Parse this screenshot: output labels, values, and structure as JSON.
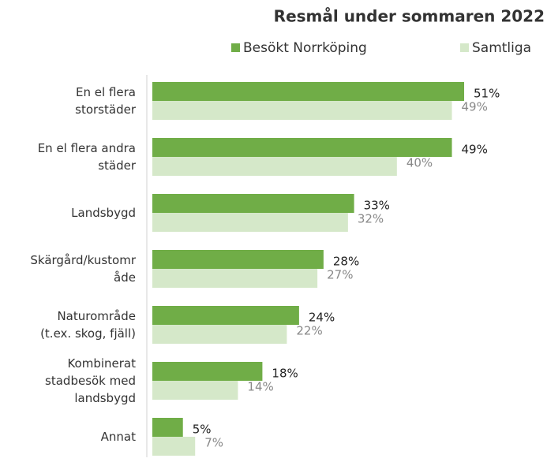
{
  "chart_data": {
    "type": "barh",
    "title": "Resmål under sommaren 2022",
    "categories": [
      "En el flera\nstorstäder",
      "En el flera andra\nstäder",
      "Landsbygd",
      "Skärgård/kustomr\nåde",
      "Naturområde\n(t.ex. skog, fjäll)",
      "Kombinerat\nstadbesök med\nlandsbygd",
      "Annat"
    ],
    "series": [
      {
        "name": "Besökt Norrköping",
        "color": "#70ad47",
        "values": [
          51,
          49,
          33,
          28,
          24,
          18,
          5
        ],
        "value_labels": [
          "51%",
          "49%",
          "33%",
          "28%",
          "24%",
          "18%",
          "5%"
        ]
      },
      {
        "name": "Samtliga",
        "color": "#d5e8c9",
        "values": [
          49,
          40,
          32,
          27,
          22,
          14,
          7
        ],
        "value_labels": [
          "49%",
          "40%",
          "32%",
          "27%",
          "22%",
          "14%",
          "7%"
        ]
      }
    ],
    "xlim": [
      0,
      55
    ]
  }
}
